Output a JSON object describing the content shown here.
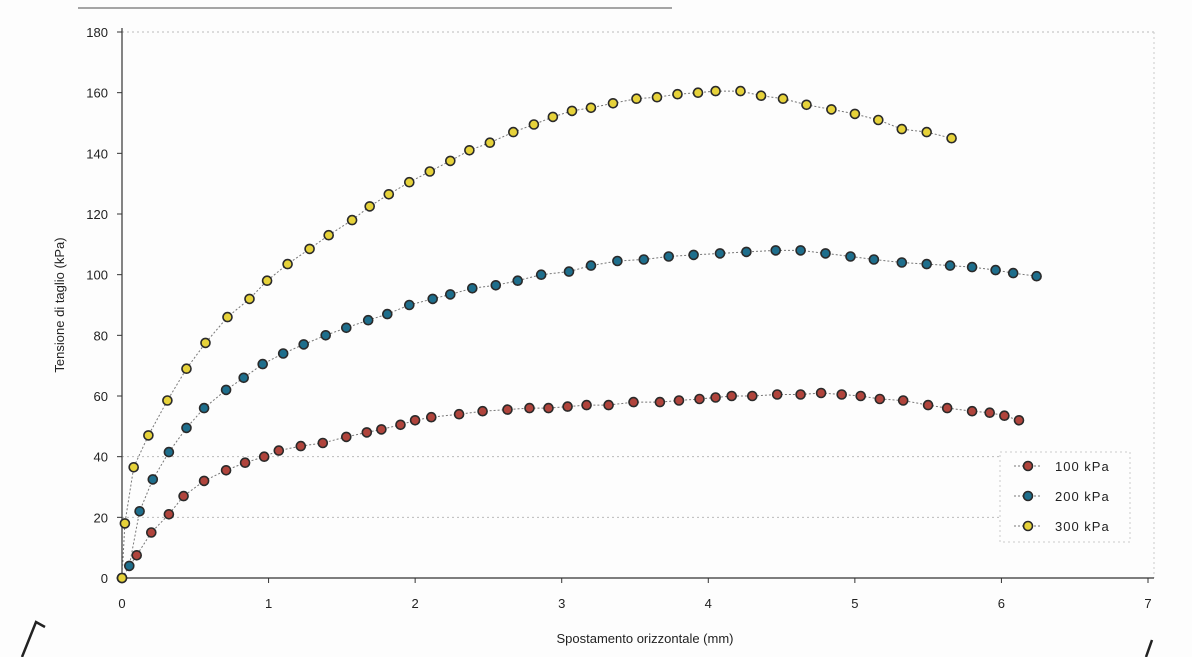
{
  "chart_data": {
    "type": "scatter",
    "xlabel": "Spostamento orizzontale (mm)",
    "ylabel": "Tensione di taglio (kPa)",
    "xlim": [
      0,
      7
    ],
    "ylim": [
      0,
      180
    ],
    "x_ticks": [
      "0",
      "1",
      "2",
      "3",
      "4",
      "5",
      "6",
      "7"
    ],
    "y_ticks": [
      "0",
      "20",
      "40",
      "60",
      "80",
      "100",
      "120",
      "140",
      "160",
      "180"
    ],
    "legend_position": "lower-right",
    "series": [
      {
        "name": "100 kPa",
        "color": "#b0443c",
        "points": [
          [
            0.0,
            0
          ],
          [
            0.1,
            7.5
          ],
          [
            0.2,
            15
          ],
          [
            0.32,
            21
          ],
          [
            0.42,
            27
          ],
          [
            0.56,
            32
          ],
          [
            0.71,
            35.5
          ],
          [
            0.84,
            38
          ],
          [
            0.97,
            40
          ],
          [
            1.07,
            42
          ],
          [
            1.22,
            43.5
          ],
          [
            1.37,
            44.5
          ],
          [
            1.53,
            46.5
          ],
          [
            1.67,
            48
          ],
          [
            1.77,
            49
          ],
          [
            1.9,
            50.5
          ],
          [
            2.0,
            52
          ],
          [
            2.11,
            53
          ],
          [
            2.3,
            54
          ],
          [
            2.46,
            55
          ],
          [
            2.63,
            55.5
          ],
          [
            2.78,
            56
          ],
          [
            2.91,
            56
          ],
          [
            3.04,
            56.5
          ],
          [
            3.17,
            57
          ],
          [
            3.32,
            57
          ],
          [
            3.49,
            58
          ],
          [
            3.67,
            58
          ],
          [
            3.8,
            58.5
          ],
          [
            3.94,
            59
          ],
          [
            4.05,
            59.5
          ],
          [
            4.16,
            60
          ],
          [
            4.3,
            60
          ],
          [
            4.47,
            60.5
          ],
          [
            4.63,
            60.5
          ],
          [
            4.77,
            61
          ],
          [
            4.91,
            60.5
          ],
          [
            5.04,
            60
          ],
          [
            5.17,
            59
          ],
          [
            5.33,
            58.5
          ],
          [
            5.5,
            57
          ],
          [
            5.63,
            56
          ],
          [
            5.8,
            55
          ],
          [
            5.92,
            54.5
          ],
          [
            6.02,
            53.5
          ],
          [
            6.12,
            52
          ]
        ]
      },
      {
        "name": "200 kPa",
        "color": "#1e6e8c",
        "points": [
          [
            0.0,
            0
          ],
          [
            0.05,
            4
          ],
          [
            0.12,
            22
          ],
          [
            0.21,
            32.5
          ],
          [
            0.32,
            41.5
          ],
          [
            0.44,
            49.5
          ],
          [
            0.56,
            56
          ],
          [
            0.71,
            62
          ],
          [
            0.83,
            66
          ],
          [
            0.96,
            70.5
          ],
          [
            1.1,
            74
          ],
          [
            1.24,
            77
          ],
          [
            1.39,
            80
          ],
          [
            1.53,
            82.5
          ],
          [
            1.68,
            85
          ],
          [
            1.81,
            87
          ],
          [
            1.96,
            90
          ],
          [
            2.12,
            92
          ],
          [
            2.24,
            93.5
          ],
          [
            2.39,
            95.5
          ],
          [
            2.55,
            96.5
          ],
          [
            2.7,
            98
          ],
          [
            2.86,
            100
          ],
          [
            3.05,
            101
          ],
          [
            3.2,
            103
          ],
          [
            3.38,
            104.5
          ],
          [
            3.56,
            105
          ],
          [
            3.73,
            106
          ],
          [
            3.9,
            106.5
          ],
          [
            4.08,
            107
          ],
          [
            4.26,
            107.5
          ],
          [
            4.46,
            108
          ],
          [
            4.63,
            108
          ],
          [
            4.8,
            107
          ],
          [
            4.97,
            106
          ],
          [
            5.13,
            105
          ],
          [
            5.32,
            104
          ],
          [
            5.49,
            103.5
          ],
          [
            5.65,
            103
          ],
          [
            5.8,
            102.5
          ],
          [
            5.96,
            101.5
          ],
          [
            6.08,
            100.5
          ],
          [
            6.24,
            99.5
          ]
        ]
      },
      {
        "name": "300 kPa",
        "color": "#e6d23a",
        "points": [
          [
            0.0,
            0
          ],
          [
            0.02,
            18
          ],
          [
            0.08,
            36.5
          ],
          [
            0.18,
            47
          ],
          [
            0.31,
            58.5
          ],
          [
            0.44,
            69
          ],
          [
            0.57,
            77.5
          ],
          [
            0.72,
            86
          ],
          [
            0.87,
            92
          ],
          [
            0.99,
            98
          ],
          [
            1.13,
            103.5
          ],
          [
            1.28,
            108.5
          ],
          [
            1.41,
            113
          ],
          [
            1.57,
            118
          ],
          [
            1.69,
            122.5
          ],
          [
            1.82,
            126.5
          ],
          [
            1.96,
            130.5
          ],
          [
            2.1,
            134
          ],
          [
            2.24,
            137.5
          ],
          [
            2.37,
            141
          ],
          [
            2.51,
            143.5
          ],
          [
            2.67,
            147
          ],
          [
            2.81,
            149.5
          ],
          [
            2.94,
            152
          ],
          [
            3.07,
            154
          ],
          [
            3.2,
            155
          ],
          [
            3.35,
            156.5
          ],
          [
            3.51,
            158
          ],
          [
            3.65,
            158.5
          ],
          [
            3.79,
            159.5
          ],
          [
            3.93,
            160
          ],
          [
            4.05,
            160.5
          ],
          [
            4.22,
            160.5
          ],
          [
            4.36,
            159
          ],
          [
            4.51,
            158
          ],
          [
            4.67,
            156
          ],
          [
            4.84,
            154.5
          ],
          [
            5.0,
            153
          ],
          [
            5.16,
            151
          ],
          [
            5.32,
            148
          ],
          [
            5.49,
            147
          ],
          [
            5.66,
            145
          ]
        ]
      }
    ]
  }
}
